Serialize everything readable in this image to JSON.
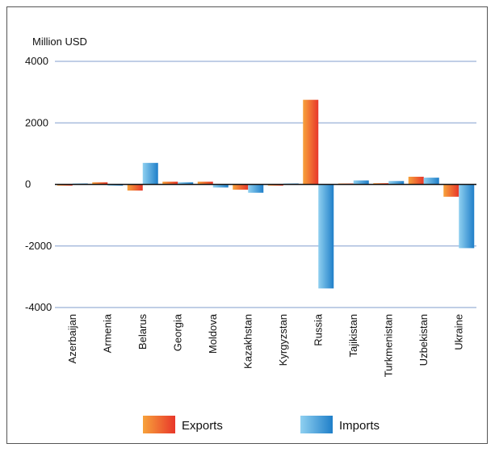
{
  "chart_data": {
    "type": "bar",
    "unit_label": "Million USD",
    "categories": [
      "Azerbaijan",
      "Armenia",
      "Belarus",
      "Georgia",
      "Moldova",
      "Kazakhstan",
      "Kyrgyzstan",
      "Russia",
      "Tajikistan",
      "Turkmenistan",
      "Uzbekistan",
      "Ukraine"
    ],
    "series": [
      {
        "name": "Exports",
        "color_light": "#f7a23b",
        "color_dark": "#e8372a",
        "values": [
          -40,
          70,
          -200,
          90,
          90,
          -170,
          -30,
          2750,
          30,
          40,
          250,
          -400
        ]
      },
      {
        "name": "Imports",
        "color_light": "#8fd0f0",
        "color_dark": "#1f7fc9",
        "values": [
          30,
          -30,
          700,
          70,
          -100,
          -270,
          30,
          -3380,
          130,
          110,
          220,
          -2070
        ]
      }
    ],
    "ylim": [
      -4000,
      4000
    ],
    "yticks": [
      4000,
      2000,
      0,
      -2000,
      -4000
    ],
    "ytick_labels": [
      "4000",
      "2000",
      "0",
      "-2000",
      "-4000"
    ],
    "grid": true,
    "legend_position": "bottom"
  }
}
